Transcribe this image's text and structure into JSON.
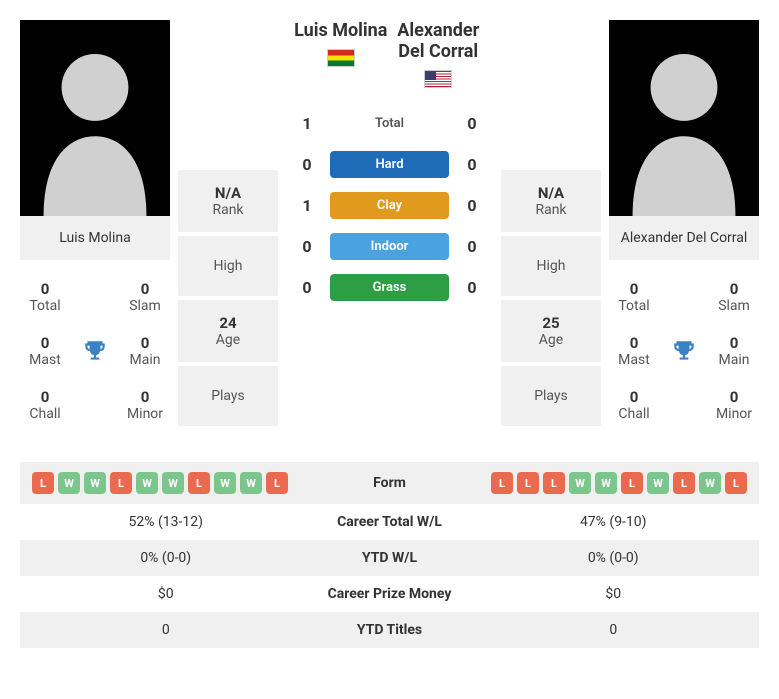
{
  "player1": {
    "name": "Luis Molina",
    "flag": "bo",
    "rank_val": "N/A",
    "rank_lbl": "Rank",
    "high_val": "",
    "high_lbl": "High",
    "age_val": "24",
    "age_lbl": "Age",
    "plays_val": "",
    "plays_lbl": "Plays",
    "titles": {
      "total_val": "0",
      "total_lbl": "Total",
      "slam_val": "0",
      "slam_lbl": "Slam",
      "mast_val": "0",
      "mast_lbl": "Mast",
      "main_val": "0",
      "main_lbl": "Main",
      "chall_val": "0",
      "chall_lbl": "Chall",
      "minor_val": "0",
      "minor_lbl": "Minor"
    }
  },
  "player2": {
    "name": "Alexander Del Corral",
    "flag": "us",
    "rank_val": "N/A",
    "rank_lbl": "Rank",
    "high_val": "",
    "high_lbl": "High",
    "age_val": "25",
    "age_lbl": "Age",
    "plays_val": "",
    "plays_lbl": "Plays",
    "titles": {
      "total_val": "0",
      "total_lbl": "Total",
      "slam_val": "0",
      "slam_lbl": "Slam",
      "mast_val": "0",
      "mast_lbl": "Mast",
      "main_val": "0",
      "main_lbl": "Main",
      "chall_val": "0",
      "chall_lbl": "Chall",
      "minor_val": "0",
      "minor_lbl": "Minor"
    }
  },
  "h2h": {
    "total": {
      "p1": "1",
      "label": "Total",
      "p2": "0"
    },
    "hard": {
      "p1": "0",
      "label": "Hard",
      "p2": "0"
    },
    "clay": {
      "p1": "1",
      "label": "Clay",
      "p2": "0"
    },
    "indoor": {
      "p1": "0",
      "label": "Indoor",
      "p2": "0"
    },
    "grass": {
      "p1": "0",
      "label": "Grass",
      "p2": "0"
    }
  },
  "form": {
    "p1": [
      "L",
      "W",
      "W",
      "L",
      "W",
      "W",
      "L",
      "W",
      "W",
      "L"
    ],
    "p2": [
      "L",
      "L",
      "L",
      "W",
      "W",
      "L",
      "W",
      "L",
      "W",
      "L"
    ]
  },
  "compare": {
    "form_lbl": "Form",
    "career_wl": {
      "p1": "52% (13-12)",
      "lbl": "Career Total W/L",
      "p2": "47% (9-10)"
    },
    "ytd_wl": {
      "p1": "0% (0-0)",
      "lbl": "YTD W/L",
      "p2": "0% (0-0)"
    },
    "prize": {
      "p1": "$0",
      "lbl": "Career Prize Money",
      "p2": "$0"
    },
    "ytd_titles": {
      "p1": "0",
      "lbl": "YTD Titles",
      "p2": "0"
    }
  },
  "colors": {
    "hard": "#1e6bb8",
    "clay": "#e09b1f",
    "indoor": "#4aa3df",
    "grass": "#2e9e44",
    "win": "#7cc68d",
    "loss": "#e96a4f",
    "trophy": "#3b82c4",
    "panel": "#f0f0f0"
  }
}
